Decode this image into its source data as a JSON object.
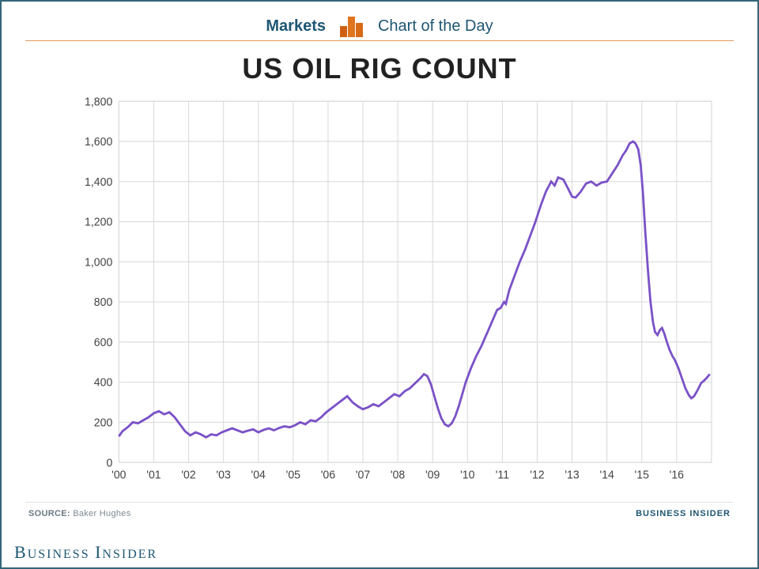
{
  "header": {
    "markets_label": "Markets",
    "cotd_label": "Chart of the Day",
    "icon_bar_colors": [
      "#cf5f12",
      "#e0751f",
      "#d86a16"
    ],
    "underline_color": "#e79a5a",
    "text_color": "#1e5673"
  },
  "chart": {
    "type": "line",
    "title": "US OIL RIG COUNT",
    "title_fontsize": 36,
    "title_color": "#222222",
    "background_color": "#ffffff",
    "grid_color": "#d8d8d8",
    "line_color": "#7b52c7",
    "line_width": 2.8,
    "y": {
      "min": 0,
      "max": 1800,
      "step": 200,
      "tick_labels": [
        "0",
        "200",
        "400",
        "600",
        "800",
        "1,000",
        "1,200",
        "1,400",
        "1,600",
        "1,800"
      ],
      "label_fontsize": 14
    },
    "x": {
      "min": 2000,
      "max": 2017,
      "tick_years": [
        2000,
        2001,
        2002,
        2003,
        2004,
        2005,
        2006,
        2007,
        2008,
        2009,
        2010,
        2011,
        2012,
        2013,
        2014,
        2015,
        2016
      ],
      "tick_labels": [
        "'00",
        "'01",
        "'02",
        "'03",
        "'04",
        "'05",
        "'06",
        "'07",
        "'08",
        "'09",
        "'10",
        "'11",
        "'12",
        "'13",
        "'14",
        "'15",
        "'16"
      ],
      "label_fontsize": 14
    },
    "series": [
      {
        "x": 2000.0,
        "y": 130
      },
      {
        "x": 2000.1,
        "y": 155
      },
      {
        "x": 2000.25,
        "y": 175
      },
      {
        "x": 2000.4,
        "y": 200
      },
      {
        "x": 2000.55,
        "y": 195
      },
      {
        "x": 2000.7,
        "y": 210
      },
      {
        "x": 2000.85,
        "y": 225
      },
      {
        "x": 2001.0,
        "y": 245
      },
      {
        "x": 2001.15,
        "y": 255
      },
      {
        "x": 2001.3,
        "y": 240
      },
      {
        "x": 2001.45,
        "y": 250
      },
      {
        "x": 2001.6,
        "y": 225
      },
      {
        "x": 2001.75,
        "y": 190
      },
      {
        "x": 2001.9,
        "y": 155
      },
      {
        "x": 2002.05,
        "y": 135
      },
      {
        "x": 2002.2,
        "y": 150
      },
      {
        "x": 2002.35,
        "y": 140
      },
      {
        "x": 2002.5,
        "y": 125
      },
      {
        "x": 2002.65,
        "y": 140
      },
      {
        "x": 2002.8,
        "y": 135
      },
      {
        "x": 2002.95,
        "y": 150
      },
      {
        "x": 2003.1,
        "y": 160
      },
      {
        "x": 2003.25,
        "y": 170
      },
      {
        "x": 2003.4,
        "y": 160
      },
      {
        "x": 2003.55,
        "y": 150
      },
      {
        "x": 2003.7,
        "y": 158
      },
      {
        "x": 2003.85,
        "y": 165
      },
      {
        "x": 2004.0,
        "y": 150
      },
      {
        "x": 2004.15,
        "y": 162
      },
      {
        "x": 2004.3,
        "y": 170
      },
      {
        "x": 2004.45,
        "y": 160
      },
      {
        "x": 2004.6,
        "y": 172
      },
      {
        "x": 2004.75,
        "y": 180
      },
      {
        "x": 2004.9,
        "y": 175
      },
      {
        "x": 2005.05,
        "y": 185
      },
      {
        "x": 2005.2,
        "y": 200
      },
      {
        "x": 2005.35,
        "y": 190
      },
      {
        "x": 2005.5,
        "y": 210
      },
      {
        "x": 2005.65,
        "y": 205
      },
      {
        "x": 2005.8,
        "y": 225
      },
      {
        "x": 2005.95,
        "y": 250
      },
      {
        "x": 2006.1,
        "y": 270
      },
      {
        "x": 2006.25,
        "y": 290
      },
      {
        "x": 2006.4,
        "y": 310
      },
      {
        "x": 2006.55,
        "y": 330
      },
      {
        "x": 2006.7,
        "y": 300
      },
      {
        "x": 2006.85,
        "y": 280
      },
      {
        "x": 2007.0,
        "y": 265
      },
      {
        "x": 2007.15,
        "y": 275
      },
      {
        "x": 2007.3,
        "y": 290
      },
      {
        "x": 2007.45,
        "y": 280
      },
      {
        "x": 2007.6,
        "y": 300
      },
      {
        "x": 2007.75,
        "y": 320
      },
      {
        "x": 2007.9,
        "y": 340
      },
      {
        "x": 2008.05,
        "y": 330
      },
      {
        "x": 2008.2,
        "y": 355
      },
      {
        "x": 2008.35,
        "y": 370
      },
      {
        "x": 2008.5,
        "y": 395
      },
      {
        "x": 2008.65,
        "y": 420
      },
      {
        "x": 2008.75,
        "y": 440
      },
      {
        "x": 2008.85,
        "y": 430
      },
      {
        "x": 2008.95,
        "y": 390
      },
      {
        "x": 2009.05,
        "y": 330
      },
      {
        "x": 2009.15,
        "y": 270
      },
      {
        "x": 2009.25,
        "y": 220
      },
      {
        "x": 2009.35,
        "y": 190
      },
      {
        "x": 2009.45,
        "y": 180
      },
      {
        "x": 2009.55,
        "y": 195
      },
      {
        "x": 2009.65,
        "y": 230
      },
      {
        "x": 2009.75,
        "y": 280
      },
      {
        "x": 2009.85,
        "y": 340
      },
      {
        "x": 2009.95,
        "y": 400
      },
      {
        "x": 2010.1,
        "y": 470
      },
      {
        "x": 2010.25,
        "y": 530
      },
      {
        "x": 2010.4,
        "y": 580
      },
      {
        "x": 2010.55,
        "y": 640
      },
      {
        "x": 2010.7,
        "y": 700
      },
      {
        "x": 2010.85,
        "y": 760
      },
      {
        "x": 2010.95,
        "y": 770
      },
      {
        "x": 2011.05,
        "y": 800
      },
      {
        "x": 2011.1,
        "y": 790
      },
      {
        "x": 2011.2,
        "y": 860
      },
      {
        "x": 2011.35,
        "y": 930
      },
      {
        "x": 2011.5,
        "y": 1000
      },
      {
        "x": 2011.65,
        "y": 1060
      },
      {
        "x": 2011.8,
        "y": 1130
      },
      {
        "x": 2011.95,
        "y": 1200
      },
      {
        "x": 2012.1,
        "y": 1280
      },
      {
        "x": 2012.25,
        "y": 1350
      },
      {
        "x": 2012.4,
        "y": 1400
      },
      {
        "x": 2012.5,
        "y": 1380
      },
      {
        "x": 2012.6,
        "y": 1420
      },
      {
        "x": 2012.75,
        "y": 1410
      },
      {
        "x": 2012.9,
        "y": 1360
      },
      {
        "x": 2013.0,
        "y": 1325
      },
      {
        "x": 2013.1,
        "y": 1320
      },
      {
        "x": 2013.25,
        "y": 1350
      },
      {
        "x": 2013.4,
        "y": 1390
      },
      {
        "x": 2013.55,
        "y": 1400
      },
      {
        "x": 2013.7,
        "y": 1380
      },
      {
        "x": 2013.85,
        "y": 1395
      },
      {
        "x": 2014.0,
        "y": 1400
      },
      {
        "x": 2014.15,
        "y": 1440
      },
      {
        "x": 2014.3,
        "y": 1480
      },
      {
        "x": 2014.45,
        "y": 1530
      },
      {
        "x": 2014.55,
        "y": 1555
      },
      {
        "x": 2014.65,
        "y": 1590
      },
      {
        "x": 2014.75,
        "y": 1600
      },
      {
        "x": 2014.82,
        "y": 1590
      },
      {
        "x": 2014.9,
        "y": 1560
      },
      {
        "x": 2014.97,
        "y": 1480
      },
      {
        "x": 2015.03,
        "y": 1350
      },
      {
        "x": 2015.1,
        "y": 1150
      },
      {
        "x": 2015.18,
        "y": 950
      },
      {
        "x": 2015.25,
        "y": 800
      },
      {
        "x": 2015.32,
        "y": 700
      },
      {
        "x": 2015.38,
        "y": 650
      },
      {
        "x": 2015.45,
        "y": 635
      },
      {
        "x": 2015.52,
        "y": 660
      },
      {
        "x": 2015.58,
        "y": 670
      },
      {
        "x": 2015.65,
        "y": 640
      },
      {
        "x": 2015.72,
        "y": 600
      },
      {
        "x": 2015.8,
        "y": 560
      },
      {
        "x": 2015.88,
        "y": 530
      },
      {
        "x": 2015.95,
        "y": 510
      },
      {
        "x": 2016.05,
        "y": 470
      },
      {
        "x": 2016.15,
        "y": 420
      },
      {
        "x": 2016.25,
        "y": 370
      },
      {
        "x": 2016.35,
        "y": 335
      },
      {
        "x": 2016.42,
        "y": 320
      },
      {
        "x": 2016.5,
        "y": 330
      },
      {
        "x": 2016.6,
        "y": 360
      },
      {
        "x": 2016.7,
        "y": 395
      },
      {
        "x": 2016.8,
        "y": 410
      },
      {
        "x": 2016.88,
        "y": 425
      },
      {
        "x": 2016.95,
        "y": 440
      }
    ]
  },
  "source": {
    "label_prefix": "SOURCE:",
    "label_value": "Baker Hughes",
    "brand_small": "BUSINESS INSIDER"
  },
  "footer": {
    "brand": "Business Insider"
  },
  "frame_border_color": "#336677"
}
